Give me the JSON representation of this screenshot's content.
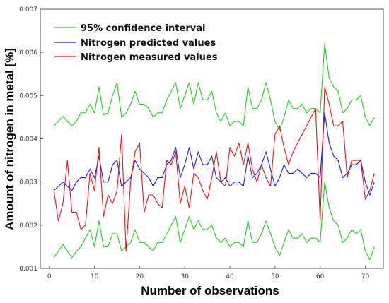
{
  "chart_data": {
    "type": "line",
    "xlabel": "Number of observations",
    "ylabel": "Amount of nitrogen in metal [%]",
    "xlim": [
      -2,
      74
    ],
    "ylim": [
      0.001,
      0.007
    ],
    "xticks": [
      0,
      10,
      20,
      30,
      40,
      50,
      60,
      70
    ],
    "yticks": [
      0.001,
      0.002,
      0.003,
      0.004,
      0.005,
      0.006,
      0.007
    ],
    "ytick_labels": [
      "0.001",
      "0.002",
      "0.003",
      "0.004",
      "0.005",
      "0.006",
      "0.007"
    ],
    "grid": false,
    "legend_position": "top-left",
    "x": [
      1,
      2,
      3,
      4,
      5,
      6,
      7,
      8,
      9,
      10,
      11,
      12,
      13,
      14,
      15,
      16,
      17,
      18,
      19,
      20,
      21,
      22,
      23,
      24,
      25,
      26,
      27,
      28,
      29,
      30,
      31,
      32,
      33,
      34,
      35,
      36,
      37,
      38,
      39,
      40,
      41,
      42,
      43,
      44,
      45,
      46,
      47,
      48,
      49,
      50,
      51,
      52,
      53,
      54,
      55,
      56,
      57,
      58,
      59,
      60,
      61,
      62,
      63,
      64,
      65,
      66,
      67,
      68,
      69,
      70,
      71,
      72
    ],
    "series": [
      {
        "name": "95% confidence interval",
        "color": "#22cc22",
        "values": [
          0.0043,
          0.0044,
          0.00452,
          0.0044,
          0.0043,
          0.0044,
          0.0046,
          0.0046,
          0.0048,
          0.0046,
          0.0052,
          0.00455,
          0.0046,
          0.005,
          0.0053,
          0.0045,
          0.0046,
          0.0048,
          0.0051,
          0.0048,
          0.0048,
          0.0047,
          0.0045,
          0.0046,
          0.0046,
          0.0049,
          0.0051,
          0.0053,
          0.0047,
          0.005,
          0.0053,
          0.0048,
          0.0053,
          0.0049,
          0.0049,
          0.0051,
          0.0046,
          0.0044,
          0.0046,
          0.0043,
          0.0044,
          0.0044,
          0.0043,
          0.0052,
          0.0047,
          0.0047,
          0.0049,
          0.0053,
          0.0049,
          0.0044,
          0.0042,
          0.0045,
          0.0049,
          0.0047,
          0.0047,
          0.0048,
          0.0046,
          0.0047,
          0.0047,
          0.0046,
          0.0062,
          0.0054,
          0.0052,
          0.0051,
          0.0046,
          0.0047,
          0.0049,
          0.0049,
          0.005,
          0.0045,
          0.0043,
          0.0045
        ]
      },
      {
        "name": "95% confidence interval",
        "color": "#22cc22",
        "values": [
          0.00125,
          0.0014,
          0.00155,
          0.0014,
          0.00125,
          0.0014,
          0.0015,
          0.0017,
          0.0019,
          0.0015,
          0.0021,
          0.0015,
          0.0015,
          0.0018,
          0.0018,
          0.0014,
          0.0015,
          0.0016,
          0.0019,
          0.0016,
          0.0016,
          0.0015,
          0.0014,
          0.0016,
          0.0016,
          0.0018,
          0.002,
          0.0022,
          0.0016,
          0.0019,
          0.0022,
          0.0019,
          0.0021,
          0.0019,
          0.0019,
          0.002,
          0.0017,
          0.0016,
          0.0017,
          0.0015,
          0.0016,
          0.0016,
          0.0015,
          0.0021,
          0.0016,
          0.0016,
          0.0018,
          0.0021,
          0.0018,
          0.0015,
          0.0013,
          0.0016,
          0.0019,
          0.0017,
          0.0017,
          0.0018,
          0.0016,
          0.0017,
          0.0017,
          0.0016,
          0.003,
          0.0024,
          0.0021,
          0.002,
          0.0016,
          0.0017,
          0.0019,
          0.0018,
          0.0019,
          0.0014,
          0.0012,
          0.0015
        ]
      },
      {
        "name": "Nitrogen predicted values",
        "color": "#1a1aee",
        "values": [
          0.0028,
          0.0029,
          0.003,
          0.0029,
          0.0028,
          0.003,
          0.0031,
          0.0031,
          0.0033,
          0.0031,
          0.0036,
          0.003,
          0.003,
          0.0034,
          0.0035,
          0.0029,
          0.003,
          0.0031,
          0.0035,
          0.0033,
          0.0032,
          0.0031,
          0.0029,
          0.0031,
          0.0031,
          0.0034,
          0.0035,
          0.0038,
          0.0031,
          0.0034,
          0.0038,
          0.0033,
          0.0037,
          0.0034,
          0.0034,
          0.0036,
          0.0031,
          0.003,
          0.0031,
          0.0029,
          0.003,
          0.003,
          0.0029,
          0.0036,
          0.0031,
          0.0032,
          0.0034,
          0.0037,
          0.0033,
          0.0029,
          0.0031,
          0.0034,
          0.0032,
          0.0032,
          0.0033,
          0.0032,
          0.0031,
          0.0032,
          0.0032,
          0.0031,
          0.0046,
          0.0039,
          0.0036,
          0.0035,
          0.0031,
          0.0032,
          0.0034,
          0.0034,
          0.0035,
          0.003,
          0.0027,
          0.003
        ]
      },
      {
        "name": "Nitrogen measured values",
        "color": "#ee1111",
        "values": [
          0.0028,
          0.0021,
          0.0025,
          0.0035,
          0.0023,
          0.0023,
          0.0019,
          0.002,
          0.0032,
          0.0028,
          0.0038,
          0.0022,
          0.0027,
          0.0025,
          0.0028,
          0.0041,
          0.0014,
          0.003,
          0.0037,
          0.0039,
          0.0023,
          0.0027,
          0.0027,
          0.0025,
          0.0024,
          0.0035,
          0.0034,
          0.0037,
          0.0025,
          0.0029,
          0.0024,
          0.0032,
          0.0031,
          0.0028,
          0.0026,
          0.0031,
          0.0037,
          0.003,
          0.0029,
          0.0038,
          0.0036,
          0.0039,
          0.0034,
          0.0039,
          0.0033,
          0.003,
          0.0034,
          0.0031,
          0.0029,
          0.0041,
          0.0043,
          0.0038,
          0.0034,
          0.0037,
          0.0039,
          0.0041,
          0.0043,
          0.0045,
          0.0047,
          0.0021,
          0.0052,
          0.0048,
          0.0043,
          0.0043,
          0.0044,
          0.0031,
          0.0035,
          0.0035,
          0.0035,
          0.0026,
          0.0028,
          0.0032
        ]
      }
    ],
    "legend": [
      {
        "label": "95% confidence interval",
        "color": "#22cc22"
      },
      {
        "label": "Nitrogen predicted values",
        "color": "#1a1aee"
      },
      {
        "label": "Nitrogen measured values",
        "color": "#ee1111"
      }
    ]
  }
}
